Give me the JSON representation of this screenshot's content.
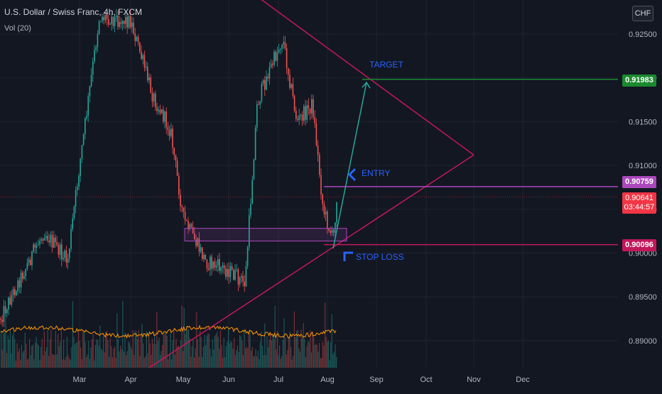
{
  "header": {
    "title": "U.S. Dollar / Swiss Franc, 4h, FXCM",
    "volume_indicator": "Vol (20)",
    "currency_button": "CHF"
  },
  "colors": {
    "background": "#131722",
    "bull": "#26a69a",
    "bear": "#ef5350",
    "triangle": "#c2185b",
    "target_line": "#1b8a2e",
    "entry_line": "#ab47bc",
    "stop_line": "#c2185b",
    "arrow": "#26a69a",
    "annotation": "#2962ff",
    "volume_ma": "#ff9800"
  },
  "chart_data": {
    "type": "candlestick",
    "symbol": "USDCHF",
    "timeframe": "4h",
    "x_ticks": [
      "Mar",
      "Apr",
      "May",
      "Jun",
      "Jul",
      "Aug",
      "Sep",
      "Oct",
      "Nov",
      "Dec"
    ],
    "y_ticks": [
      "0.92500",
      "0.92000",
      "0.91500",
      "0.91000",
      "0.90500",
      "0.90000",
      "0.89500",
      "0.89000"
    ],
    "ylim": [
      0.8875,
      0.9275
    ],
    "monthly_path": [
      {
        "month": "Feb",
        "price": 0.8925
      },
      {
        "month": "Feb-mid",
        "price": 0.9025
      },
      {
        "month": "Feb-late",
        "price": 0.899
      },
      {
        "month": "Mar",
        "price": 0.91
      },
      {
        "month": "Mar-mid",
        "price": 0.927
      },
      {
        "month": "Apr",
        "price": 0.9265
      },
      {
        "month": "Apr-mid",
        "price": 0.918
      },
      {
        "month": "Apr-late",
        "price": 0.914
      },
      {
        "month": "May",
        "price": 0.904
      },
      {
        "month": "May-mid",
        "price": 0.899
      },
      {
        "month": "Jun",
        "price": 0.898
      },
      {
        "month": "Jun-mid",
        "price": 0.8965
      },
      {
        "month": "Jun-late",
        "price": 0.917
      },
      {
        "month": "Jul",
        "price": 0.92
      },
      {
        "month": "Jul-mid",
        "price": 0.9245
      },
      {
        "month": "Jul-late",
        "price": 0.915
      },
      {
        "month": "Jul-end",
        "price": 0.917
      },
      {
        "month": "Aug-early",
        "price": 0.905
      },
      {
        "month": "Aug",
        "price": 0.9015
      },
      {
        "month": "Aug-now",
        "price": 0.90641
      }
    ],
    "levels": {
      "target": {
        "label": "TARGET",
        "price": "0.91983"
      },
      "entry": {
        "label": "ENTRY",
        "price": "0.90759"
      },
      "current": {
        "price": "0.90641",
        "countdown": "03:44:57"
      },
      "stop_loss": {
        "label": "STOP LOSS",
        "price": "0.90096"
      }
    },
    "triangle": {
      "upper": [
        {
          "date": "Feb-end",
          "price": 0.93
        },
        {
          "date": "Nov",
          "price": 0.9112
        }
      ],
      "lower": [
        {
          "date": "May",
          "price": 0.887
        },
        {
          "date": "Nov",
          "price": 0.9112
        }
      ]
    },
    "arrow": {
      "from": {
        "date": "Aug",
        "price": 0.9015
      },
      "to": {
        "date": "Aug-end",
        "price": 0.9198
      }
    },
    "support_zone": {
      "from": "May",
      "to": "Aug",
      "price_low": 0.9017,
      "price_high": 0.9025
    }
  }
}
